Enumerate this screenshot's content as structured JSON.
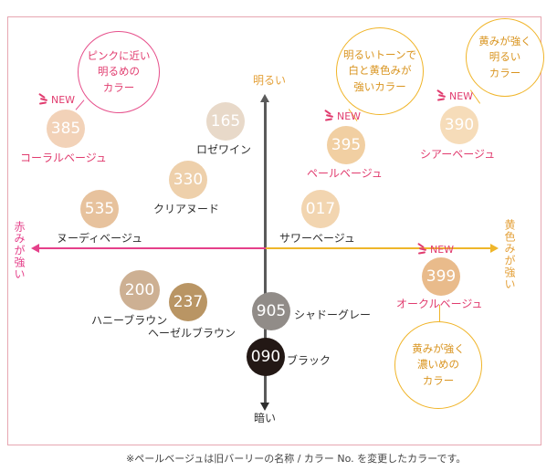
{
  "axes": {
    "top": "明るい",
    "bottom": "暗い",
    "left": "赤みが強い",
    "right": "黄色みが強い"
  },
  "new_label": "NEW",
  "shades": [
    {
      "code": "385",
      "name": "コーラルベージュ",
      "color": "#f2d2b8",
      "name_color": "pink",
      "is_new": true
    },
    {
      "code": "165",
      "name": "ロゼワイン",
      "color": "#e8d9c9",
      "name_color": "dark",
      "is_new": false
    },
    {
      "code": "330",
      "name": "クリアヌード",
      "color": "#eed0ab",
      "name_color": "dark",
      "is_new": false
    },
    {
      "code": "535",
      "name": "ヌーディベージュ",
      "color": "#e7c29d",
      "name_color": "dark",
      "is_new": false
    },
    {
      "code": "395",
      "name": "ペールベージュ",
      "color": "#f1cfa2",
      "name_color": "pink",
      "is_new": true
    },
    {
      "code": "017",
      "name": "サワーベージュ",
      "color": "#f2d5b0",
      "name_color": "dark",
      "is_new": false
    },
    {
      "code": "390",
      "name": "シアーベージュ",
      "color": "#f6dcb9",
      "name_color": "pink",
      "is_new": true
    },
    {
      "code": "399",
      "name": "オークルベージュ",
      "color": "#e9bb8b",
      "name_color": "pink",
      "is_new": true
    },
    {
      "code": "200",
      "name": "ハニーブラウン",
      "color": "#cdb093",
      "name_color": "dark",
      "is_new": false
    },
    {
      "code": "237",
      "name": "ヘーゼルブラウン",
      "color": "#b99564",
      "name_color": "dark",
      "is_new": false
    },
    {
      "code": "905",
      "name": "シャドーグレー",
      "color": "#918c88",
      "name_color": "dark",
      "is_new": false
    },
    {
      "code": "090",
      "name": "ブラック",
      "color": "#231815",
      "name_color": "dark",
      "is_new": false
    }
  ],
  "callouts": {
    "pink_light": "ピンクに近い\n明るめの\nカラー",
    "gold_bright_gray": "明るいトーンで\n白と黄色みが\n強いカラー",
    "gold_bright": "黄みが強く\n明るい\nカラー",
    "gold_dark": "黄みが強く\n濃いめの\nカラー"
  },
  "footnote": "※ペールベージュは旧バーリーの名称 / カラー No. を変更したカラーです。"
}
